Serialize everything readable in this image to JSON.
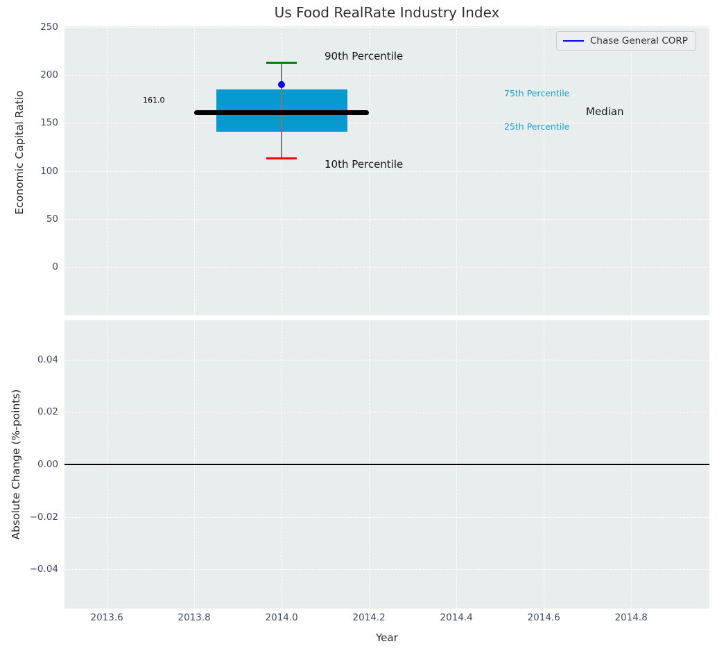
{
  "title": "Us Food RealRate Industry Index",
  "legend": {
    "label": "Chase General CORP",
    "line_color": "#0000ee"
  },
  "colors": {
    "plot_background": "#e8edee",
    "grid": "#ffffff",
    "box_fill": "#069acf",
    "median_line": "#000000",
    "whisker": "#7a7a7a",
    "cap_90th": "#008000",
    "cap_10th": "#ff0000",
    "company_point": "#0000ee",
    "percentile_label": "#1a9fd2",
    "tick_label": "#3b4a68",
    "axis_label": "#262626"
  },
  "chart_data": [
    {
      "type": "boxplot",
      "title": "Us Food RealRate Industry Index",
      "ylabel": "Economic Capital Ratio",
      "xlabel": "",
      "xlim": [
        2013.503,
        2014.979
      ],
      "ylim": [
        -51,
        251
      ],
      "yticks": [
        0,
        50,
        100,
        150,
        200,
        250
      ],
      "ytick_labels": [
        "0",
        "50",
        "100",
        "150",
        "200",
        "250"
      ],
      "xticks": [
        2013.6,
        2013.8,
        2014.0,
        2014.2,
        2014.4,
        2014.6,
        2014.8
      ],
      "grid": true,
      "legend_position": "upper right",
      "box": {
        "x_center": 2014.0,
        "box_width_years": 0.3,
        "median_width_years": 0.4,
        "cap_width_years": 0.035,
        "p10": 113,
        "p25": 141,
        "median": 161,
        "p75": 185,
        "p90": 213
      },
      "median_value_label": "161.0",
      "annotations": {
        "p90_label": "90th Percentile",
        "p10_label": "10th Percentile",
        "p75_label": "75th Percentile",
        "p25_label": "25th Percentile",
        "median_label": "Median"
      },
      "series": [
        {
          "name": "Chase General CORP",
          "type": "scatter",
          "x": [
            2014.0
          ],
          "y": [
            190
          ],
          "color": "#0000ee"
        }
      ]
    },
    {
      "type": "line",
      "ylabel": "Absolute Change (%-points)",
      "xlabel": "Year",
      "xlim": [
        2013.503,
        2014.979
      ],
      "ylim": [
        -0.055,
        0.055
      ],
      "yticks": [
        0.04,
        0.02,
        0.0,
        -0.02,
        -0.04
      ],
      "ytick_labels": [
        "0.04",
        "0.02",
        "0.00",
        "−0.02",
        "−0.04"
      ],
      "xticks": [
        2013.6,
        2013.8,
        2014.0,
        2014.2,
        2014.4,
        2014.6,
        2014.8
      ],
      "xtick_labels": [
        "2013.6",
        "2013.8",
        "2014.0",
        "2014.2",
        "2014.4",
        "2014.6",
        "2014.8"
      ],
      "grid": true,
      "zero_line": true,
      "series": []
    }
  ]
}
